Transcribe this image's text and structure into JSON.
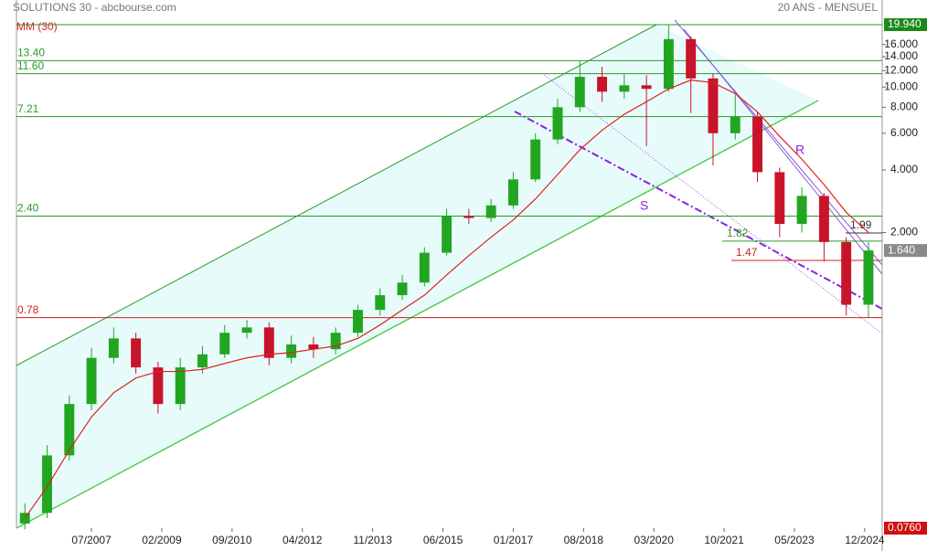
{
  "chart_data": {
    "type": "candlestick",
    "title": "SOLUTIONS 30 - abcbourse.com",
    "subtitle": "20 ANS - MENSUEL",
    "log_scale": true,
    "up_color": "#22a622",
    "down_color": "#c8142a",
    "x": [
      2006.0,
      2006.5,
      2007.0,
      2007.5,
      2008.0,
      2008.5,
      2009.0,
      2009.5,
      2010.0,
      2010.5,
      2011.0,
      2011.5,
      2012.0,
      2012.5,
      2013.0,
      2013.5,
      2014.0,
      2014.5,
      2015.0,
      2015.5,
      2016.0,
      2016.5,
      2017.0,
      2017.5,
      2018.0,
      2018.5,
      2019.0,
      2019.5,
      2020.0,
      2020.5,
      2021.0,
      2021.5,
      2022.0,
      2022.5,
      2023.0,
      2023.5,
      2024.0,
      2024.5,
      2025.0
    ],
    "open": [
      0.08,
      0.09,
      0.17,
      0.3,
      0.5,
      0.62,
      0.45,
      0.3,
      0.45,
      0.52,
      0.66,
      0.7,
      0.5,
      0.58,
      0.55,
      0.66,
      0.85,
      1.0,
      1.15,
      1.6,
      2.4,
      2.35,
      2.7,
      3.6,
      5.6,
      8.0,
      11.2,
      9.5,
      10.2,
      9.8,
      17.0,
      11.0,
      6.0,
      7.2,
      3.9,
      2.2,
      3.0,
      1.8,
      0.9
    ],
    "high": [
      0.1,
      0.19,
      0.33,
      0.56,
      0.7,
      0.66,
      0.48,
      0.5,
      0.57,
      0.72,
      0.76,
      0.74,
      0.64,
      0.63,
      0.7,
      0.9,
      1.08,
      1.25,
      1.7,
      2.6,
      2.6,
      2.9,
      3.9,
      6.0,
      8.8,
      13.4,
      12.5,
      11.6,
      11.4,
      19.94,
      17.5,
      11.6,
      9.2,
      7.6,
      4.1,
      3.3,
      3.1,
      1.9,
      1.8
    ],
    "low": [
      0.075,
      0.085,
      0.16,
      0.28,
      0.47,
      0.42,
      0.27,
      0.28,
      0.42,
      0.5,
      0.62,
      0.46,
      0.47,
      0.5,
      0.52,
      0.63,
      0.8,
      0.95,
      1.1,
      1.55,
      2.2,
      2.25,
      2.6,
      3.5,
      5.3,
      7.6,
      8.5,
      8.8,
      5.2,
      9.5,
      7.5,
      4.2,
      5.6,
      3.5,
      1.9,
      2.0,
      1.45,
      0.8,
      0.78
    ],
    "close": [
      0.09,
      0.17,
      0.3,
      0.5,
      0.62,
      0.45,
      0.3,
      0.45,
      0.52,
      0.66,
      0.7,
      0.5,
      0.58,
      0.55,
      0.66,
      0.85,
      1.0,
      1.15,
      1.6,
      2.4,
      2.35,
      2.7,
      3.6,
      5.6,
      8.0,
      11.2,
      9.5,
      10.2,
      9.8,
      17.0,
      11.0,
      6.0,
      7.2,
      3.9,
      2.2,
      3.0,
      1.8,
      0.9,
      1.64
    ],
    "moving_average": {
      "name": "MM (30)",
      "color": "#e02020",
      "values": [
        0.085,
        0.12,
        0.18,
        0.26,
        0.34,
        0.4,
        0.43,
        0.43,
        0.44,
        0.47,
        0.5,
        0.52,
        0.53,
        0.55,
        0.57,
        0.62,
        0.72,
        0.85,
        1.0,
        1.25,
        1.55,
        1.9,
        2.3,
        2.9,
        3.8,
        5.0,
        6.2,
        7.4,
        8.5,
        9.8,
        10.8,
        10.5,
        9.3,
        7.6,
        5.8,
        4.5,
        3.4,
        2.5,
        2.0
      ]
    },
    "xlim": [
      2005.81,
      2025.31
    ],
    "ylim": [
      0.076,
      19.94
    ],
    "xticks": [
      {
        "value": 2007.5,
        "label": "07/2007"
      },
      {
        "value": 2009.083,
        "label": "02/2009"
      },
      {
        "value": 2010.667,
        "label": "09/2010"
      },
      {
        "value": 2012.25,
        "label": "04/2012"
      },
      {
        "value": 2013.833,
        "label": "11/2013"
      },
      {
        "value": 2015.417,
        "label": "06/2015"
      },
      {
        "value": 2017.0,
        "label": "01/2017"
      },
      {
        "value": 2018.583,
        "label": "08/2018"
      },
      {
        "value": 2020.167,
        "label": "03/2020"
      },
      {
        "value": 2021.75,
        "label": "10/2021"
      },
      {
        "value": 2023.333,
        "label": "05/2023"
      },
      {
        "value": 2024.917,
        "label": "12/2024"
      }
    ],
    "yticks": [
      {
        "value": 16,
        "label": "16.000"
      },
      {
        "value": 14,
        "label": "14.000"
      },
      {
        "value": 12,
        "label": "12.000"
      },
      {
        "value": 10,
        "label": "10.000"
      },
      {
        "value": 8,
        "label": "8.000"
      },
      {
        "value": 6,
        "label": "6.000"
      },
      {
        "value": 4,
        "label": "4.000"
      },
      {
        "value": 2,
        "label": "2.000"
      }
    ],
    "levels": [
      {
        "value": 19.94,
        "label": "19.94",
        "color": "#2a9a2a"
      },
      {
        "value": 13.4,
        "label": "13.40",
        "color": "#2a9a2a"
      },
      {
        "value": 11.6,
        "label": "11.60",
        "color": "#2a9a2a"
      },
      {
        "value": 7.21,
        "label": "7.21",
        "color": "#2a9a2a"
      },
      {
        "value": 2.4,
        "label": "2.40",
        "color": "#2a9a2a"
      },
      {
        "value": 0.78,
        "label": "0.78",
        "color": "#d02020"
      }
    ],
    "short_levels": [
      {
        "value": 1.99,
        "label": "1.99",
        "color": "#333333"
      },
      {
        "value": 1.82,
        "label": "1.82",
        "color": "#2a9a2a"
      },
      {
        "value": 1.47,
        "label": "1.47",
        "color": "#d02020"
      }
    ],
    "price_tags": [
      {
        "value": 19.94,
        "label": "19.940",
        "color": "#1a8a1a"
      },
      {
        "value": 1.64,
        "label": "1.640",
        "color": "#8a8a8a"
      },
      {
        "value": 0.076,
        "label": "0.0760",
        "color": "#d01010"
      }
    ],
    "annotations": [
      "S",
      "R"
    ]
  }
}
